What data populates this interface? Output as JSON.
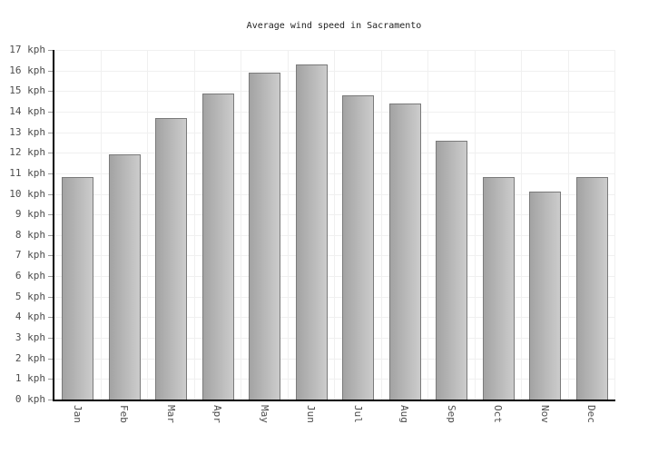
{
  "chart_data": {
    "type": "bar",
    "title": "Average wind speed in Sacramento",
    "categories": [
      "Jan",
      "Feb",
      "Mar",
      "Apr",
      "May",
      "Jun",
      "Jul",
      "Aug",
      "Sep",
      "Oct",
      "Nov",
      "Dec"
    ],
    "values": [
      10.8,
      11.9,
      13.7,
      14.9,
      15.9,
      16.3,
      14.8,
      14.4,
      12.6,
      10.8,
      10.1,
      10.8
    ],
    "unit": "kph",
    "ylim": [
      0,
      17
    ],
    "ytick_step": 1,
    "y_ticks": [
      "0 kph",
      "1 kph",
      "2 kph",
      "3 kph",
      "4 kph",
      "5 kph",
      "6 kph",
      "7 kph",
      "8 kph",
      "9 kph",
      "10 kph",
      "11 kph",
      "12 kph",
      "13 kph",
      "14 kph",
      "15 kph",
      "16 kph",
      "17 kph"
    ],
    "xlabel": "",
    "ylabel": "",
    "grid": true,
    "legend": "none",
    "colors": {
      "bar_gradient_left": "#a3a3a3",
      "bar_gradient_right": "#cccccc",
      "bar_border": "#7a7a7a",
      "axis": "#000000",
      "grid_line": "#f0f0f0",
      "tick_text": "#4d4d4d",
      "title_text": "#222222",
      "tick_mark": "#999999",
      "background": "#ffffff"
    }
  }
}
